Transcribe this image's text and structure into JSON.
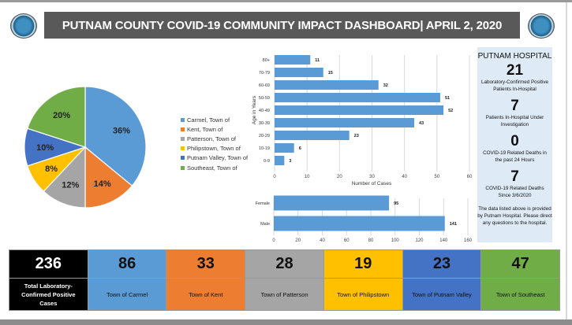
{
  "header": {
    "title": "PUTNAM COUNTY COVID-19 COMMUNITY IMPACT DASHBOARD| APRIL 2, 2020",
    "logo_text": "PUTNAM COUNTY"
  },
  "colors": {
    "carmel": "#5B9BD5",
    "kent": "#ED7D31",
    "patterson": "#A5A5A5",
    "philipstown": "#FFC000",
    "putnam_valley": "#4472C4",
    "southeast": "#70AD47",
    "bar": "#5B9BD5",
    "header_bg": "#595959",
    "hospital_bg": "#DEEBF7"
  },
  "chart_data": [
    {
      "type": "pie",
      "categories": [
        "Carmel, Town of",
        "Kent, Town of",
        "Patterson, Town of",
        "Philipstown, Town of",
        "Putnam Valley, Town of",
        "Southeast, Town of"
      ],
      "values": [
        36,
        14,
        12,
        8,
        10,
        20
      ],
      "labels": [
        "36%",
        "14%",
        "12%",
        "8%",
        "10%",
        "20%"
      ],
      "legend": "right"
    },
    {
      "type": "bar",
      "orientation": "horizontal",
      "categories": [
        "80+",
        "70-79",
        "60-69",
        "50-59",
        "40-49",
        "30-39",
        "20-29",
        "10-19",
        "0-9"
      ],
      "values": [
        11,
        15,
        32,
        51,
        52,
        43,
        23,
        6,
        3
      ],
      "xlabel": "Number of Cases",
      "ylabel": "Age in Years",
      "xlim": [
        0,
        60
      ],
      "xticks": [
        "0",
        "10",
        "20",
        "30",
        "40",
        "50",
        "60"
      ]
    },
    {
      "type": "bar",
      "orientation": "horizontal",
      "categories": [
        "Female",
        "Male"
      ],
      "values": [
        95,
        141
      ],
      "xlim": [
        0,
        160
      ],
      "xticks": [
        "0",
        "20",
        "40",
        "60",
        "80",
        "100",
        "120",
        "140",
        "160"
      ]
    }
  ],
  "hospital": {
    "title": "PUTNAM HOSPITAL",
    "stats": [
      {
        "value": "21",
        "label": "Laboratory-Confirmed Positive Patients In-Hospital"
      },
      {
        "value": "7",
        "label": "Patients In-Hospital Under Investigation"
      },
      {
        "value": "0",
        "label": "COVID-19 Related Deaths in the past 24 Hours"
      },
      {
        "value": "7",
        "label": "COVID-19 Related Deaths Since 3/6/2020"
      }
    ],
    "note": "The data listed above is provided by Putnam Hospital. Please direct any questions to the hospital."
  },
  "summary": [
    {
      "value": "236",
      "label": "Total Laboratory-Confirmed Positive Cases",
      "bg": "#000000",
      "fg": "#ffffff"
    },
    {
      "value": "86",
      "label": "Town of Carmel",
      "bg": "#5B9BD5",
      "fg": "#111111"
    },
    {
      "value": "33",
      "label": "Town of Kent",
      "bg": "#ED7D31",
      "fg": "#111111"
    },
    {
      "value": "28",
      "label": "Town of Patterson",
      "bg": "#A5A5A5",
      "fg": "#111111"
    },
    {
      "value": "19",
      "label": "Town of Philipstown",
      "bg": "#FFC000",
      "fg": "#111111"
    },
    {
      "value": "23",
      "label": "Town of Putnam Valley",
      "bg": "#4472C4",
      "fg": "#111111"
    },
    {
      "value": "47",
      "label": "Town of Southeast",
      "bg": "#70AD47",
      "fg": "#111111"
    }
  ]
}
